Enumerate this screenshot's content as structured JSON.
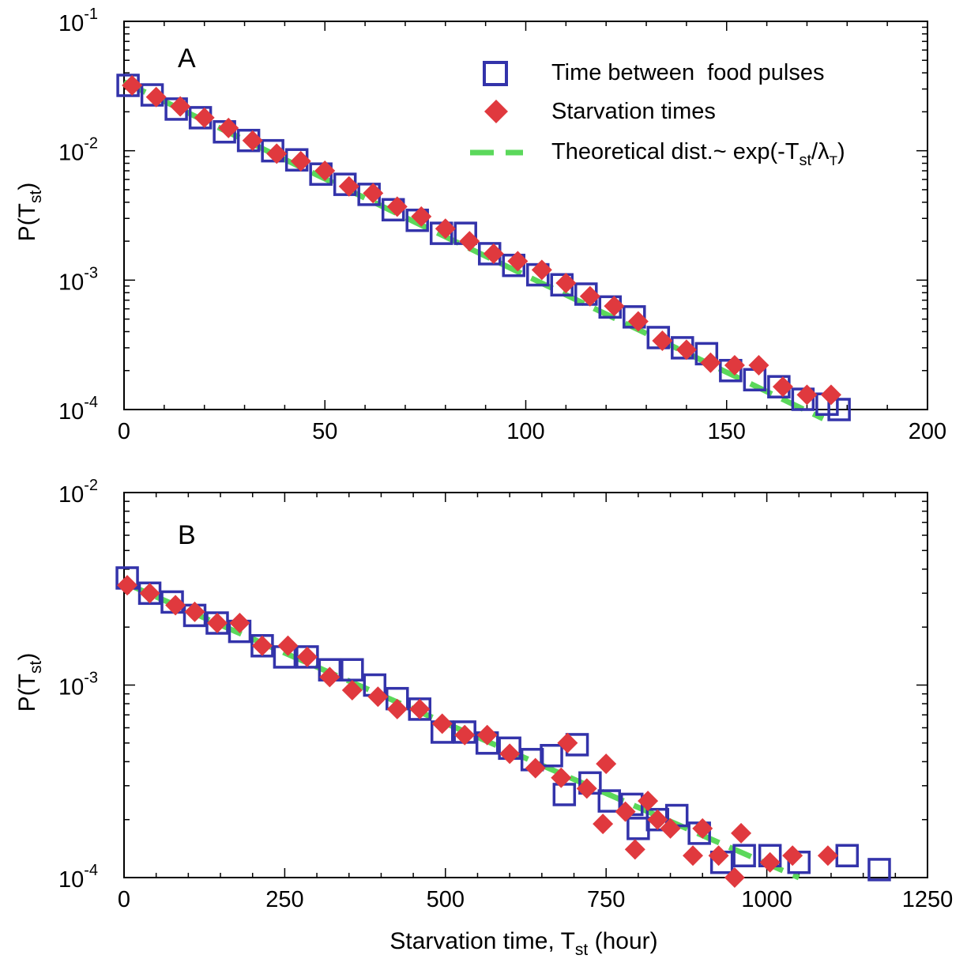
{
  "colors": {
    "square": "#3333aa",
    "diamond": "#e0393e",
    "line": "#5bd85b",
    "axis": "#000000"
  },
  "legend": {
    "items": [
      {
        "marker": "square",
        "label": "Time between  food pulses"
      },
      {
        "marker": "diamond",
        "label": "Starvation times"
      },
      {
        "marker": "dashed-line",
        "label": "Theoretical dist.~ exp(-T",
        "sub1": "st",
        "mid": "/λ",
        "sub2": "T",
        "end": ")"
      }
    ]
  },
  "xlabel": {
    "pre": "Starvation time, T",
    "sub": "st",
    "post": " (hour)"
  },
  "ylabel": {
    "pre": "P(T",
    "sub": "st",
    "post": ")"
  },
  "chart_data": [
    {
      "type": "scatter",
      "panel": "A",
      "log_y": true,
      "xlim": [
        0,
        200
      ],
      "ylim": [
        0.0001,
        0.1
      ],
      "xticks": [
        0,
        50,
        100,
        150,
        200
      ],
      "ytick_exponents": [
        -4,
        -3,
        -2,
        -1
      ],
      "series": [
        {
          "name": "Time between  food pulses",
          "marker": "square",
          "x": [
            1,
            7,
            13,
            19,
            25,
            31,
            37,
            43,
            49,
            55,
            61,
            67,
            73,
            79,
            85,
            91,
            97,
            103,
            109,
            115,
            121,
            127,
            133,
            139,
            145,
            151,
            157,
            163,
            169,
            175,
            178
          ],
          "y": [
            0.032,
            0.027,
            0.021,
            0.018,
            0.014,
            0.012,
            0.01,
            0.0085,
            0.0066,
            0.0055,
            0.0046,
            0.0035,
            0.0029,
            0.0023,
            0.0023,
            0.0016,
            0.0013,
            0.0011,
            0.00092,
            0.00078,
            0.00062,
            0.00052,
            0.00036,
            0.0003,
            0.00027,
            0.0002,
            0.00017,
            0.00015,
            0.00012,
            0.00011,
            0.0001
          ]
        },
        {
          "name": "Starvation times",
          "marker": "diamond",
          "x": [
            2,
            8,
            14,
            20,
            26,
            32,
            38,
            44,
            50,
            56,
            62,
            68,
            74,
            80,
            86,
            92,
            98,
            104,
            110,
            116,
            122,
            128,
            134,
            140,
            146,
            152,
            158,
            164,
            170,
            176
          ],
          "y": [
            0.032,
            0.026,
            0.022,
            0.018,
            0.015,
            0.012,
            0.0095,
            0.0083,
            0.007,
            0.0053,
            0.0047,
            0.0037,
            0.0031,
            0.0025,
            0.002,
            0.0016,
            0.0014,
            0.0012,
            0.00095,
            0.00075,
            0.00063,
            0.00048,
            0.00034,
            0.00029,
            0.00023,
            0.00022,
            0.00022,
            0.00015,
            0.00013,
            0.00013
          ]
        }
      ],
      "theory_line": {
        "x": [
          0,
          174
        ],
        "y": [
          0.034,
          8.5e-05
        ]
      }
    },
    {
      "type": "scatter",
      "panel": "B",
      "log_y": true,
      "xlim": [
        0,
        1250
      ],
      "ylim": [
        0.0001,
        0.01
      ],
      "xticks": [
        0,
        250,
        500,
        750,
        1000,
        1250
      ],
      "ytick_exponents": [
        -4,
        -3,
        -2
      ],
      "series": [
        {
          "name": "Time between  food pulses",
          "marker": "square",
          "x": [
            5,
            40,
            75,
            110,
            145,
            180,
            215,
            250,
            285,
            320,
            355,
            390,
            425,
            460,
            495,
            530,
            565,
            600,
            635,
            665,
            685,
            705,
            725,
            755,
            790,
            800,
            830,
            860,
            895,
            930,
            965,
            1005,
            1050,
            1125,
            1175
          ],
          "y": [
            0.0036,
            0.003,
            0.0027,
            0.0023,
            0.0021,
            0.0019,
            0.0016,
            0.0014,
            0.0014,
            0.0012,
            0.0012,
            0.001,
            0.00085,
            0.00075,
            0.00057,
            0.00057,
            0.0005,
            0.00047,
            0.00041,
            0.00043,
            0.00027,
            0.00049,
            0.00031,
            0.00025,
            0.00024,
            0.00018,
            0.0002,
            0.00021,
            0.00017,
            0.00012,
            0.00013,
            0.00013,
            0.00012,
            0.00013,
            0.00011
          ]
        },
        {
          "name": "Starvation times",
          "marker": "diamond",
          "x": [
            5,
            40,
            80,
            110,
            145,
            180,
            215,
            255,
            285,
            320,
            355,
            395,
            425,
            460,
            495,
            530,
            565,
            600,
            640,
            680,
            690,
            720,
            745,
            750,
            780,
            795,
            815,
            830,
            850,
            885,
            900,
            925,
            950,
            960,
            1005,
            1040,
            1095
          ],
          "y": [
            0.0033,
            0.003,
            0.0026,
            0.0024,
            0.0021,
            0.0021,
            0.0016,
            0.0016,
            0.0014,
            0.0011,
            0.00094,
            0.00087,
            0.00075,
            0.00075,
            0.00063,
            0.00055,
            0.00055,
            0.00044,
            0.00037,
            0.00033,
            0.0005,
            0.00029,
            0.00019,
            0.00039,
            0.00022,
            0.00014,
            0.00025,
            0.0002,
            0.00018,
            0.00013,
            0.00018,
            0.00013,
            0.0001,
            0.00017,
            0.00012,
            0.00013,
            0.00013
          ]
        }
      ],
      "theory_line": {
        "x": [
          0,
          1050
        ],
        "y": [
          0.0034,
          0.0001
        ]
      }
    }
  ]
}
